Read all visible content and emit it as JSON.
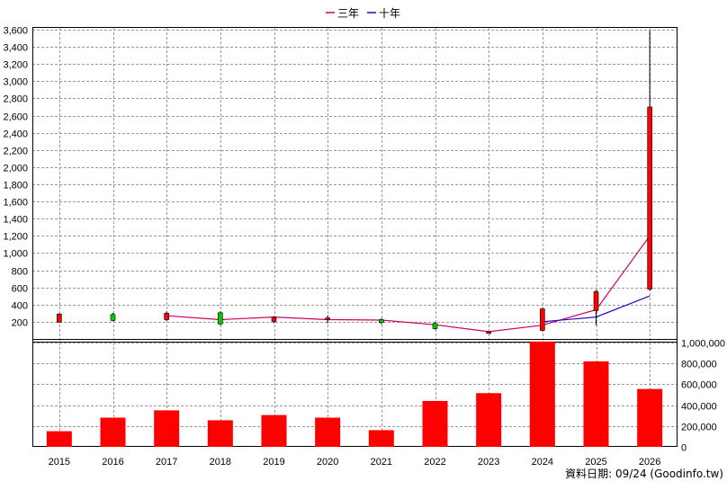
{
  "legend": {
    "items": [
      {
        "label": "三年",
        "color": "#cc0066"
      },
      {
        "label": "十年",
        "color": "#3300cc"
      }
    ]
  },
  "source_note": "資料日期: 09/24 (Goodinfo.tw)",
  "chart_data": [
    {
      "type": "candlestick+line",
      "title": "",
      "ylim": [
        0,
        3600
      ],
      "yticks": [
        200,
        400,
        600,
        800,
        1000,
        1200,
        1400,
        1600,
        1800,
        2000,
        2200,
        2400,
        2600,
        2800,
        3000,
        3200,
        3400,
        3600
      ],
      "ytick_labels": [
        "200",
        "400",
        "600",
        "800",
        "1,000",
        "1,200",
        "1,400",
        "1,600",
        "1,800",
        "2,000",
        "2,200",
        "2,400",
        "2,600",
        "2,800",
        "3,000",
        "3,200",
        "3,400",
        "3,600"
      ],
      "grid": true,
      "categories": [
        "2015",
        "2016",
        "2017",
        "2018",
        "2019",
        "2020",
        "2021",
        "2022",
        "2023",
        "2024",
        "2025",
        "2026"
      ],
      "candles": [
        {
          "year": "2015",
          "open": 290,
          "close": 195,
          "high": 300,
          "low": 190,
          "color": "#ff0000"
        },
        {
          "year": "2016",
          "open": 215,
          "close": 285,
          "high": 305,
          "low": 205,
          "color": "#00cc00"
        },
        {
          "year": "2017",
          "open": 300,
          "close": 225,
          "high": 320,
          "low": 210,
          "color": "#ff0000"
        },
        {
          "year": "2018",
          "open": 175,
          "close": 305,
          "high": 320,
          "low": 160,
          "color": "#00cc00"
        },
        {
          "year": "2019",
          "open": 250,
          "close": 205,
          "high": 265,
          "low": 185,
          "color": "#ff0000"
        },
        {
          "year": "2020",
          "open": 245,
          "close": 240,
          "high": 275,
          "low": 180,
          "color": "#ff0000"
        },
        {
          "year": "2021",
          "open": 190,
          "close": 225,
          "high": 240,
          "low": 170,
          "color": "#00cc00"
        },
        {
          "year": "2022",
          "open": 120,
          "close": 180,
          "high": 195,
          "low": 110,
          "color": "#00cc00"
        },
        {
          "year": "2023",
          "open": 85,
          "close": 80,
          "high": 90,
          "low": 70,
          "color": "#ff0000"
        },
        {
          "year": "2024",
          "open": 350,
          "close": 100,
          "high": 360,
          "low": 90,
          "color": "#ff0000"
        },
        {
          "year": "2025",
          "open": 550,
          "close": 330,
          "high": 570,
          "low": 160,
          "color": "#ff0000"
        },
        {
          "year": "2026",
          "open": 2700,
          "close": 580,
          "high": 3590,
          "low": 560,
          "color": "#ff0000"
        }
      ],
      "series": [
        {
          "name": "三年",
          "color": "#cc0066",
          "x": [
            "2017",
            "2018",
            "2019",
            "2020",
            "2021",
            "2022",
            "2023",
            "2024",
            "2025",
            "2026"
          ],
          "values": [
            270,
            225,
            255,
            225,
            220,
            165,
            85,
            160,
            340,
            1200
          ]
        },
        {
          "name": "十年",
          "color": "#3300cc",
          "x": [
            "2024",
            "2025",
            "2026"
          ],
          "values": [
            200,
            255,
            500
          ]
        }
      ]
    },
    {
      "type": "bar",
      "title": "",
      "ylim": [
        0,
        1000000
      ],
      "yticks": [
        0,
        200000,
        400000,
        600000,
        800000,
        1000000
      ],
      "ytick_labels": [
        "0",
        "200,000",
        "400,000",
        "600,000",
        "800,000",
        "1,000,000"
      ],
      "grid": true,
      "categories": [
        "2015",
        "2016",
        "2017",
        "2018",
        "2019",
        "2020",
        "2021",
        "2022",
        "2023",
        "2024",
        "2025",
        "2026"
      ],
      "values": [
        150000,
        280000,
        350000,
        255000,
        305000,
        280000,
        160000,
        440000,
        515000,
        1010000,
        820000,
        555000
      ],
      "color": "#ff0000"
    }
  ]
}
